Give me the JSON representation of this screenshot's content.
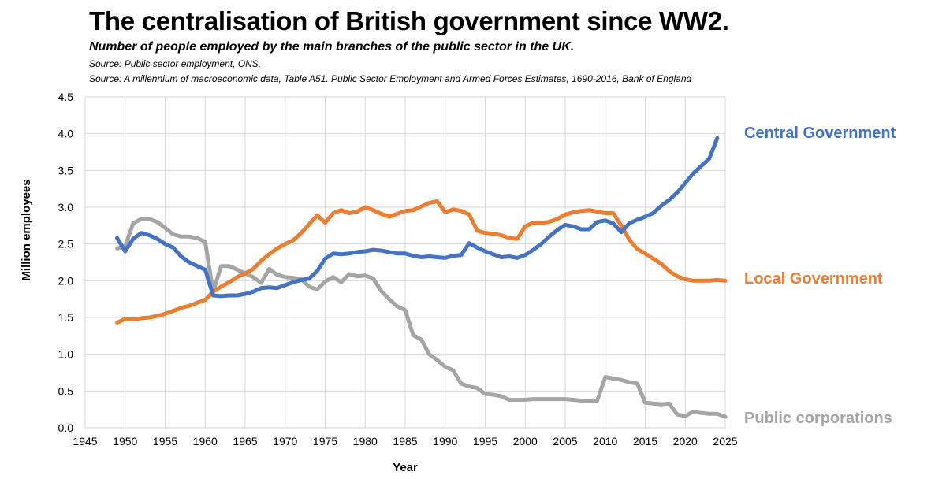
{
  "header": {
    "title": "The centralisation of British government since WW2.",
    "subtitle": "Number of people employed by the main branches of the public sector in the UK.",
    "source1": "Source: Public sector employment, ONS,",
    "source2": "Source: A millennium of macroeconomic data, Table A51. Public Sector Employment and Armed Forces Estimates, 1690-2016, Bank of England"
  },
  "chart_data": {
    "type": "line",
    "title": "The centralisation of British government since WW2.",
    "subtitle": "Number of people employed by the main branches of the public sector in the UK.",
    "xlabel": "Year",
    "ylabel": "Million employees",
    "xlim": [
      1945,
      2025
    ],
    "ylim": [
      0,
      4.5
    ],
    "x_ticks": [
      "1945",
      "1950",
      "1955",
      "1960",
      "1965",
      "1970",
      "1975",
      "1980",
      "1985",
      "1990",
      "1995",
      "2000",
      "2005",
      "2010",
      "2015",
      "2020",
      "2025"
    ],
    "y_ticks": [
      "0.0",
      "0.5",
      "1.0",
      "1.5",
      "2.0",
      "2.5",
      "3.0",
      "3.5",
      "4.0",
      "4.5"
    ],
    "grid": "vertical and horizontal",
    "legend": "direct labels at right",
    "series": [
      {
        "name": "Central Government",
        "color": "#4472C4",
        "points": [
          [
            1949,
            2.58
          ],
          [
            1950,
            2.4
          ],
          [
            1951,
            2.57
          ],
          [
            1952,
            2.65
          ],
          [
            1953,
            2.62
          ],
          [
            1954,
            2.57
          ],
          [
            1955,
            2.5
          ],
          [
            1956,
            2.45
          ],
          [
            1957,
            2.33
          ],
          [
            1958,
            2.25
          ],
          [
            1959,
            2.2
          ],
          [
            1960,
            2.15
          ],
          [
            1961,
            1.8
          ],
          [
            1962,
            1.79
          ],
          [
            1963,
            1.8
          ],
          [
            1964,
            1.8
          ],
          [
            1965,
            1.82
          ],
          [
            1966,
            1.85
          ],
          [
            1967,
            1.9
          ],
          [
            1968,
            1.91
          ],
          [
            1969,
            1.9
          ],
          [
            1970,
            1.94
          ],
          [
            1971,
            1.98
          ],
          [
            1972,
            2.01
          ],
          [
            1973,
            2.03
          ],
          [
            1974,
            2.13
          ],
          [
            1975,
            2.3
          ],
          [
            1976,
            2.37
          ],
          [
            1977,
            2.36
          ],
          [
            1978,
            2.37
          ],
          [
            1979,
            2.39
          ],
          [
            1980,
            2.4
          ],
          [
            1981,
            2.42
          ],
          [
            1982,
            2.41
          ],
          [
            1983,
            2.39
          ],
          [
            1984,
            2.37
          ],
          [
            1985,
            2.37
          ],
          [
            1986,
            2.34
          ],
          [
            1987,
            2.32
          ],
          [
            1988,
            2.33
          ],
          [
            1989,
            2.32
          ],
          [
            1990,
            2.31
          ],
          [
            1991,
            2.34
          ],
          [
            1992,
            2.35
          ],
          [
            1993,
            2.51
          ],
          [
            1994,
            2.45
          ],
          [
            1995,
            2.4
          ],
          [
            1996,
            2.36
          ],
          [
            1997,
            2.32
          ],
          [
            1998,
            2.33
          ],
          [
            1999,
            2.31
          ],
          [
            2000,
            2.35
          ],
          [
            2001,
            2.42
          ],
          [
            2002,
            2.5
          ],
          [
            2003,
            2.6
          ],
          [
            2004,
            2.69
          ],
          [
            2005,
            2.76
          ],
          [
            2006,
            2.74
          ],
          [
            2007,
            2.7
          ],
          [
            2008,
            2.7
          ],
          [
            2009,
            2.8
          ],
          [
            2010,
            2.82
          ],
          [
            2011,
            2.78
          ],
          [
            2012,
            2.66
          ],
          [
            2013,
            2.78
          ],
          [
            2014,
            2.83
          ],
          [
            2015,
            2.87
          ],
          [
            2016,
            2.92
          ],
          [
            2017,
            3.02
          ],
          [
            2018,
            3.1
          ],
          [
            2019,
            3.2
          ],
          [
            2020,
            3.33
          ],
          [
            2021,
            3.46
          ],
          [
            2022,
            3.56
          ],
          [
            2023,
            3.66
          ],
          [
            2024,
            3.94
          ]
        ]
      },
      {
        "name": "Local Government",
        "color": "#ED7D31",
        "points": [
          [
            1949,
            1.43
          ],
          [
            1950,
            1.48
          ],
          [
            1951,
            1.47
          ],
          [
            1952,
            1.49
          ],
          [
            1953,
            1.5
          ],
          [
            1954,
            1.52
          ],
          [
            1955,
            1.55
          ],
          [
            1956,
            1.59
          ],
          [
            1957,
            1.63
          ],
          [
            1958,
            1.66
          ],
          [
            1959,
            1.7
          ],
          [
            1960,
            1.74
          ],
          [
            1961,
            1.85
          ],
          [
            1962,
            1.92
          ],
          [
            1963,
            1.98
          ],
          [
            1964,
            2.05
          ],
          [
            1965,
            2.1
          ],
          [
            1966,
            2.16
          ],
          [
            1967,
            2.27
          ],
          [
            1968,
            2.36
          ],
          [
            1969,
            2.44
          ],
          [
            1970,
            2.5
          ],
          [
            1971,
            2.55
          ],
          [
            1972,
            2.65
          ],
          [
            1973,
            2.77
          ],
          [
            1974,
            2.89
          ],
          [
            1975,
            2.79
          ],
          [
            1976,
            2.92
          ],
          [
            1977,
            2.96
          ],
          [
            1978,
            2.92
          ],
          [
            1979,
            2.94
          ],
          [
            1980,
            3.0
          ],
          [
            1981,
            2.96
          ],
          [
            1982,
            2.91
          ],
          [
            1983,
            2.87
          ],
          [
            1984,
            2.91
          ],
          [
            1985,
            2.95
          ],
          [
            1986,
            2.96
          ],
          [
            1987,
            3.01
          ],
          [
            1988,
            3.06
          ],
          [
            1989,
            3.08
          ],
          [
            1990,
            2.93
          ],
          [
            1991,
            2.97
          ],
          [
            1992,
            2.95
          ],
          [
            1993,
            2.9
          ],
          [
            1994,
            2.68
          ],
          [
            1995,
            2.65
          ],
          [
            1996,
            2.64
          ],
          [
            1997,
            2.62
          ],
          [
            1998,
            2.58
          ],
          [
            1999,
            2.57
          ],
          [
            2000,
            2.74
          ],
          [
            2001,
            2.79
          ],
          [
            2002,
            2.79
          ],
          [
            2003,
            2.8
          ],
          [
            2004,
            2.84
          ],
          [
            2005,
            2.9
          ],
          [
            2006,
            2.93
          ],
          [
            2007,
            2.95
          ],
          [
            2008,
            2.96
          ],
          [
            2009,
            2.94
          ],
          [
            2010,
            2.92
          ],
          [
            2011,
            2.92
          ],
          [
            2012,
            2.75
          ],
          [
            2013,
            2.56
          ],
          [
            2014,
            2.43
          ],
          [
            2015,
            2.37
          ],
          [
            2016,
            2.3
          ],
          [
            2017,
            2.23
          ],
          [
            2018,
            2.13
          ],
          [
            2019,
            2.06
          ],
          [
            2020,
            2.02
          ],
          [
            2021,
            2.0
          ],
          [
            2022,
            2.0
          ],
          [
            2023,
            2.0
          ],
          [
            2024,
            2.01
          ],
          [
            2025,
            2.0
          ]
        ]
      },
      {
        "name": "Public corporations",
        "color": "#A5A5A5",
        "points": [
          [
            1949,
            2.44
          ],
          [
            1950,
            2.47
          ],
          [
            1951,
            2.78
          ],
          [
            1952,
            2.84
          ],
          [
            1953,
            2.84
          ],
          [
            1954,
            2.8
          ],
          [
            1955,
            2.72
          ],
          [
            1956,
            2.63
          ],
          [
            1957,
            2.6
          ],
          [
            1958,
            2.6
          ],
          [
            1959,
            2.58
          ],
          [
            1960,
            2.53
          ],
          [
            1961,
            1.85
          ],
          [
            1962,
            2.2
          ],
          [
            1963,
            2.2
          ],
          [
            1964,
            2.15
          ],
          [
            1965,
            2.1
          ],
          [
            1966,
            2.05
          ],
          [
            1967,
            1.97
          ],
          [
            1968,
            2.16
          ],
          [
            1969,
            2.08
          ],
          [
            1970,
            2.05
          ],
          [
            1971,
            2.04
          ],
          [
            1972,
            2.02
          ],
          [
            1973,
            1.92
          ],
          [
            1974,
            1.88
          ],
          [
            1975,
            1.99
          ],
          [
            1976,
            2.05
          ],
          [
            1977,
            1.98
          ],
          [
            1978,
            2.09
          ],
          [
            1979,
            2.06
          ],
          [
            1980,
            2.07
          ],
          [
            1981,
            2.03
          ],
          [
            1982,
            1.86
          ],
          [
            1983,
            1.75
          ],
          [
            1984,
            1.65
          ],
          [
            1985,
            1.6
          ],
          [
            1986,
            1.26
          ],
          [
            1987,
            1.2
          ],
          [
            1988,
            1.0
          ],
          [
            1989,
            0.92
          ],
          [
            1990,
            0.83
          ],
          [
            1991,
            0.78
          ],
          [
            1992,
            0.6
          ],
          [
            1993,
            0.56
          ],
          [
            1994,
            0.54
          ],
          [
            1995,
            0.46
          ],
          [
            1996,
            0.45
          ],
          [
            1997,
            0.43
          ],
          [
            1998,
            0.38
          ],
          [
            1999,
            0.38
          ],
          [
            2000,
            0.38
          ],
          [
            2001,
            0.39
          ],
          [
            2002,
            0.39
          ],
          [
            2003,
            0.39
          ],
          [
            2004,
            0.39
          ],
          [
            2005,
            0.39
          ],
          [
            2006,
            0.38
          ],
          [
            2007,
            0.37
          ],
          [
            2008,
            0.36
          ],
          [
            2009,
            0.37
          ],
          [
            2010,
            0.69
          ],
          [
            2011,
            0.67
          ],
          [
            2012,
            0.65
          ],
          [
            2013,
            0.62
          ],
          [
            2014,
            0.6
          ],
          [
            2015,
            0.34
          ],
          [
            2016,
            0.33
          ],
          [
            2017,
            0.32
          ],
          [
            2018,
            0.33
          ],
          [
            2019,
            0.18
          ],
          [
            2020,
            0.16
          ],
          [
            2021,
            0.22
          ],
          [
            2022,
            0.2
          ],
          [
            2023,
            0.19
          ],
          [
            2024,
            0.19
          ],
          [
            2025,
            0.15
          ]
        ]
      }
    ]
  }
}
